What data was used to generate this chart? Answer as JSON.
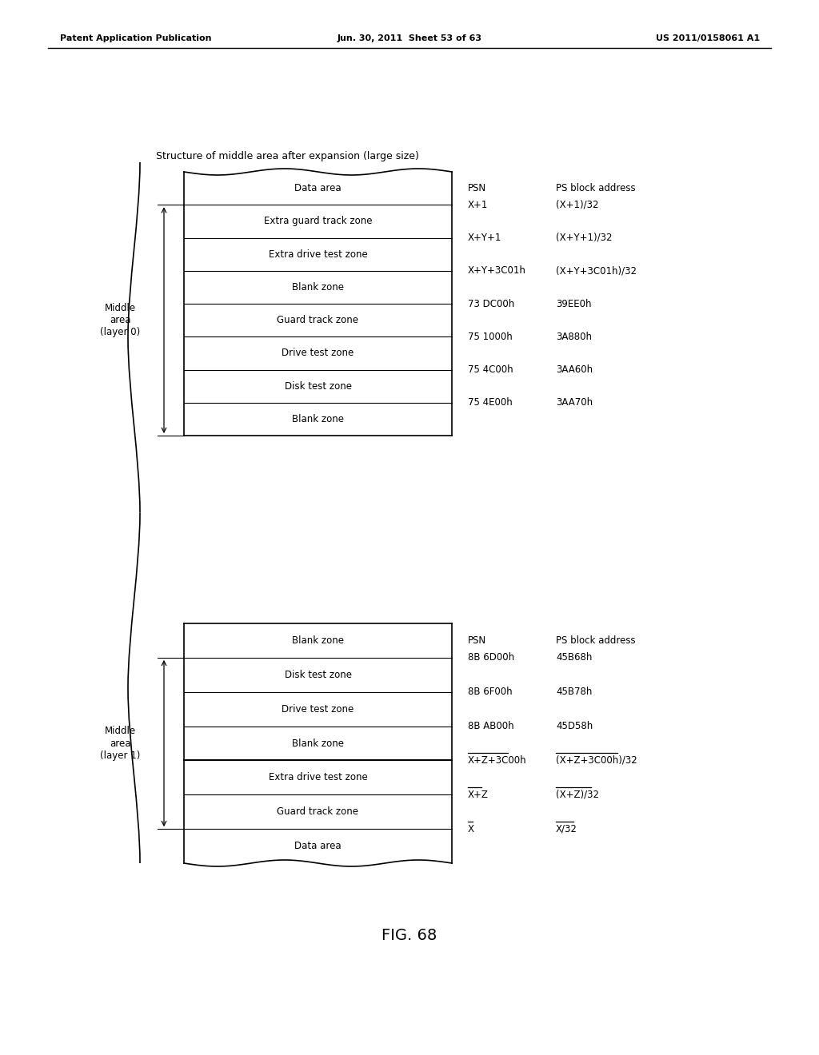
{
  "header_left": "Patent Application Publication",
  "header_mid": "Jun. 30, 2011  Sheet 53 of 63",
  "header_right": "US 2011/0158061 A1",
  "fig_label": "FIG. 68",
  "title": "Structure of middle area after expansion (large size)",
  "diagram1": {
    "label": "Middle\narea\n(layer 0)",
    "rows": [
      "Data area",
      "Extra guard track zone",
      "Extra drive test zone",
      "Blank zone",
      "Guard track zone",
      "Drive test zone",
      "Disk test zone",
      "Blank zone"
    ],
    "psn_header": "PSN",
    "ps_header": "PS block address",
    "psn_values": [
      "X+1",
      "X+Y+1",
      "X+Y+3C01h",
      "73 DC00h",
      "75 1000h",
      "75 4C00h",
      "75 4E00h"
    ],
    "ps_values": [
      "(X+1)/32",
      "(X+Y+1)/32",
      "(X+Y+3C01h)/32",
      "39EE0h",
      "3A880h",
      "3AA60h",
      "3AA70h"
    ]
  },
  "diagram2": {
    "label": "Middle\narea\n(layer 1)",
    "rows": [
      "Blank zone",
      "Disk test zone",
      "Drive test zone",
      "Blank zone",
      "Extra drive test zone",
      "Guard track zone",
      "Data area"
    ],
    "psn_header": "PSN",
    "ps_header": "PS block address",
    "psn_values": [
      "8B 6D00h",
      "8B 6F00h",
      "8B AB00h",
      "X+Z+3C00h",
      "X+Z",
      "X"
    ],
    "ps_values": [
      "45B68h",
      "45B78h",
      "45D58h",
      "(X+Z+3C00h)/32",
      "(X+Z)/32",
      "X/32"
    ],
    "psn_overline": [
      false,
      false,
      false,
      true,
      true,
      true
    ],
    "ps_overline": [
      false,
      false,
      false,
      true,
      true,
      true
    ]
  },
  "bg_color": "#ffffff"
}
